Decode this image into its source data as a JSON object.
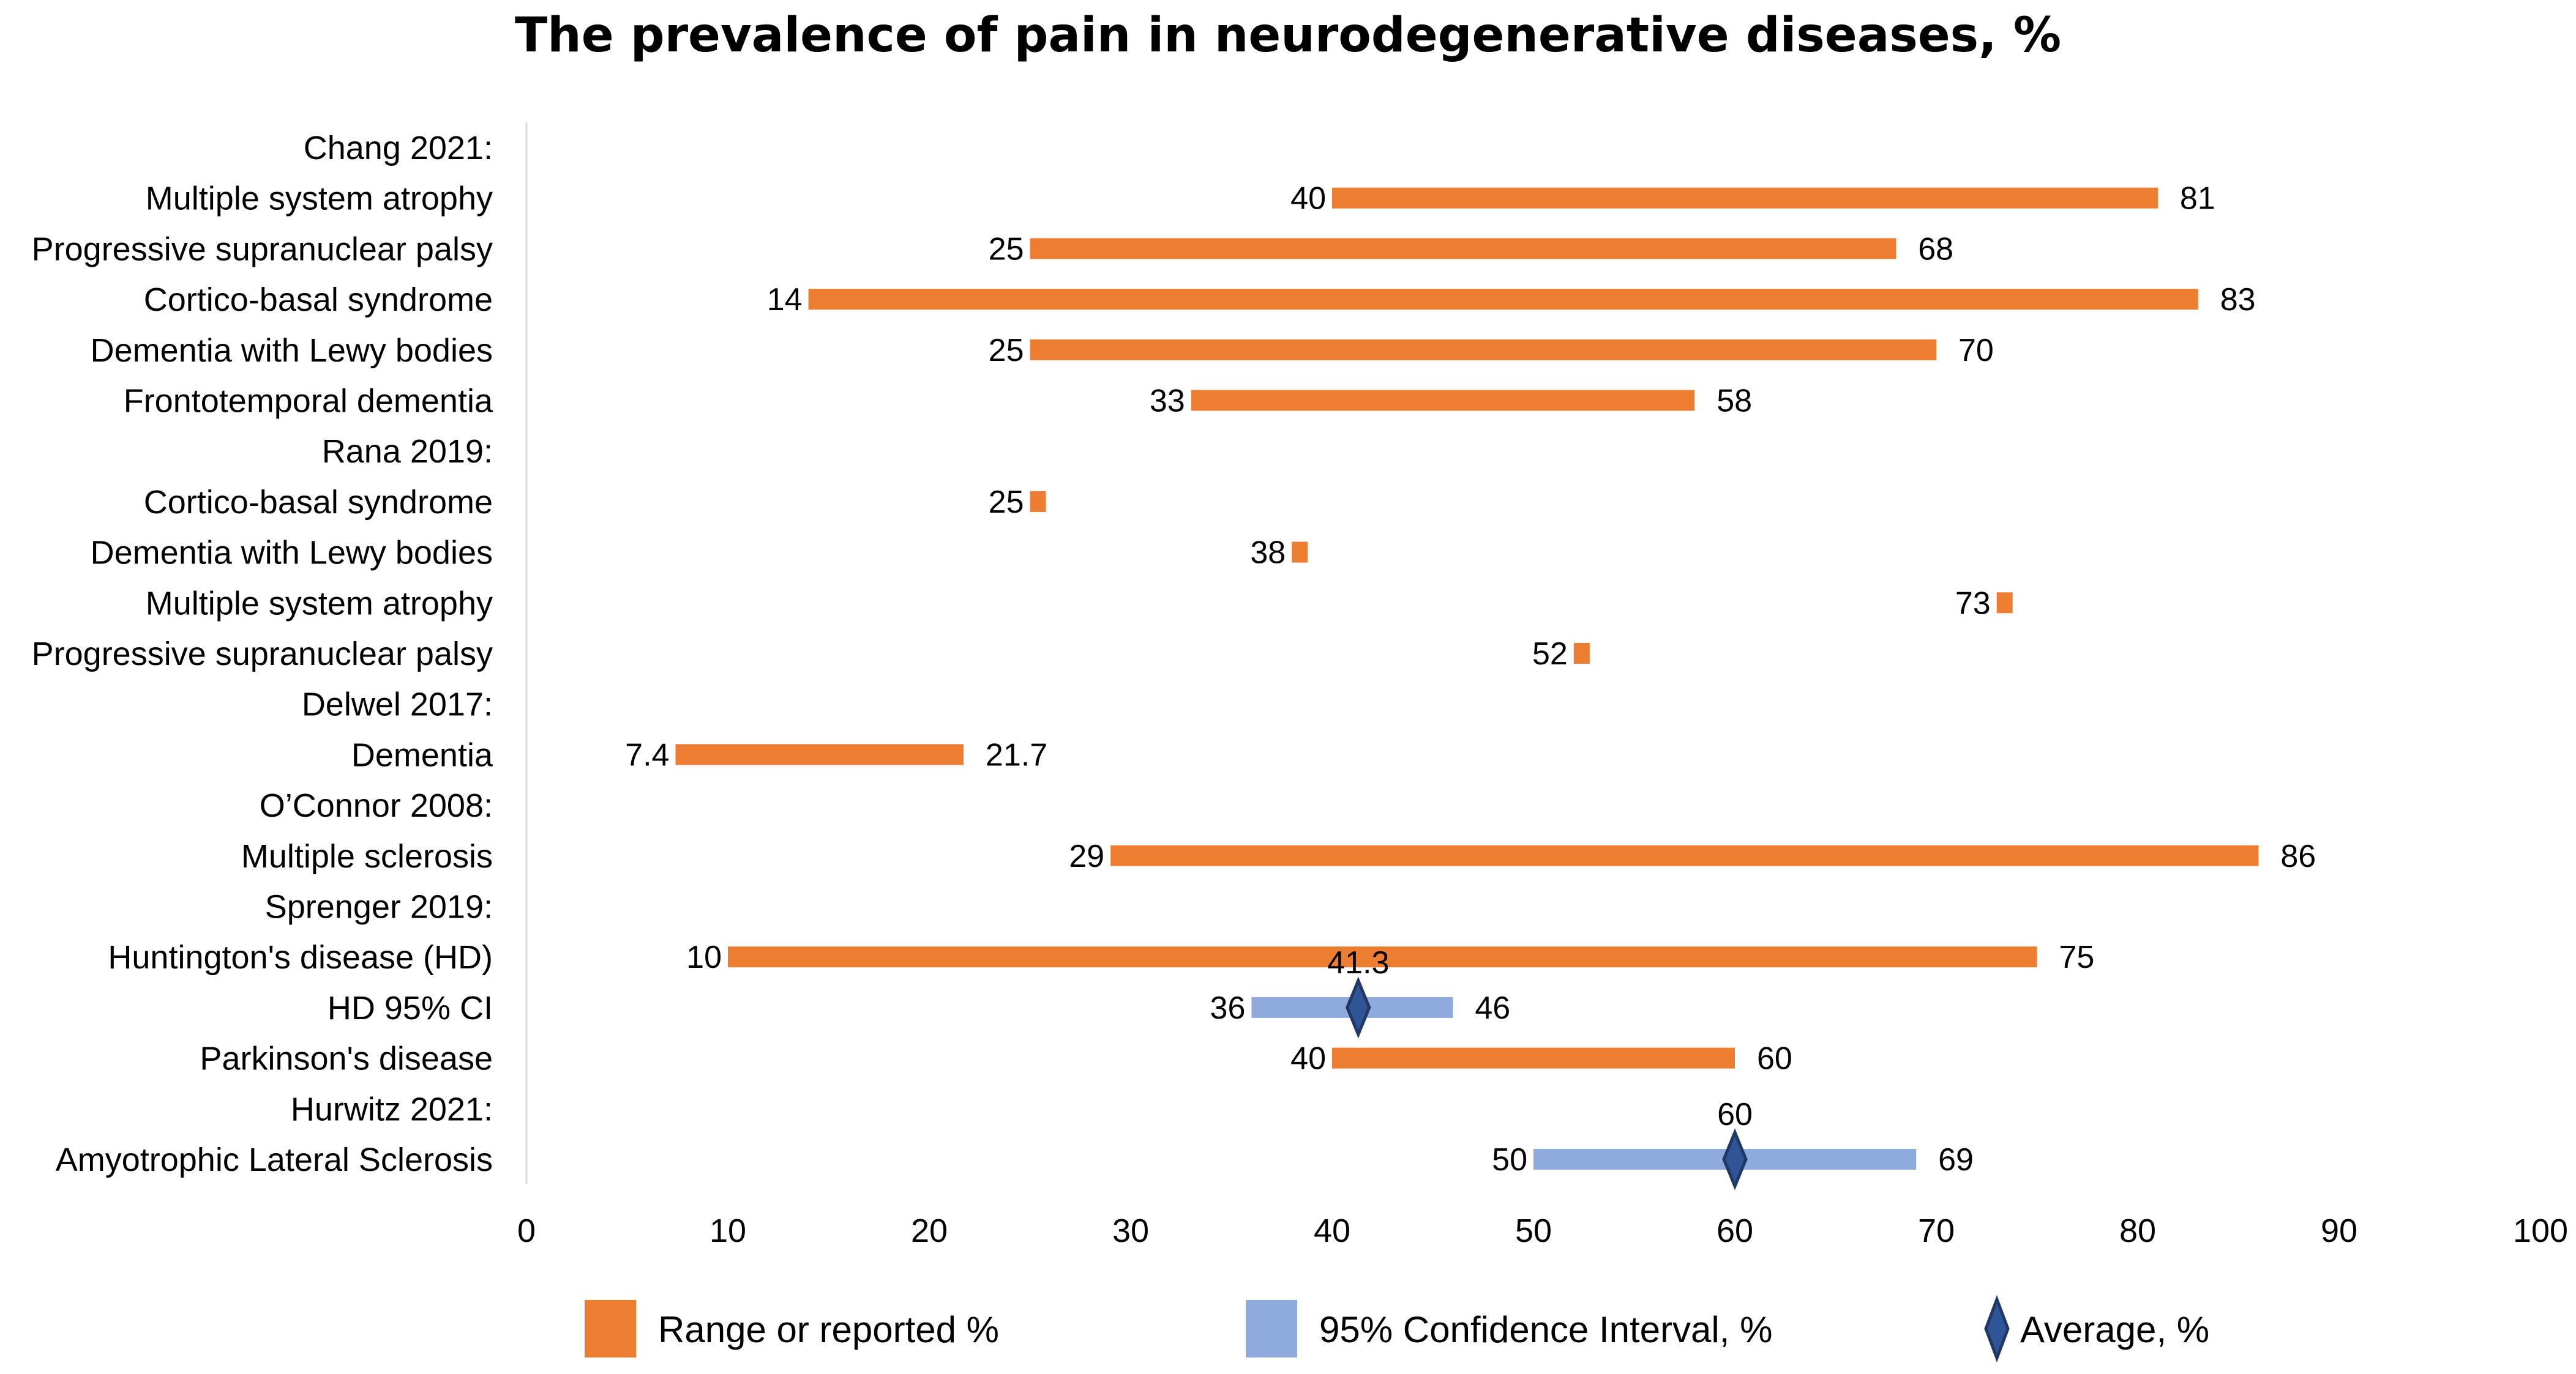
{
  "chart_data": {
    "type": "bar",
    "subtype": "floating-range",
    "title": "The prevalence of pain in neurodegenerative diseases, %",
    "xlabel": "",
    "ylabel": "",
    "xlim": [
      0,
      100
    ],
    "xticks": [
      "0",
      "10",
      "20",
      "30",
      "40",
      "50",
      "60",
      "70",
      "80",
      "90",
      "100"
    ],
    "grid": false,
    "colors": {
      "range": "#ED7D31",
      "ci": "#8FAADC",
      "average": "#2F5597",
      "average_border": "#1F3864",
      "axis": "#D9D9D9"
    },
    "legend": {
      "position": "bottom",
      "items": [
        {
          "kind": "range",
          "label": "Range or reported %"
        },
        {
          "kind": "ci",
          "label": "95% Confidence Interval, %"
        },
        {
          "kind": "average",
          "label": "Average, %"
        }
      ]
    },
    "rows": [
      {
        "label": "Chang 2021:",
        "kind": "header"
      },
      {
        "label": "Multiple system atrophy",
        "kind": "range",
        "low": 40,
        "high": 81,
        "low_label": "40",
        "high_label": "81"
      },
      {
        "label": "Progressive supranuclear palsy",
        "kind": "range",
        "low": 25,
        "high": 68,
        "low_label": "25",
        "high_label": "68"
      },
      {
        "label": "Cortico-basal syndrome",
        "kind": "range",
        "low": 14,
        "high": 83,
        "low_label": "14",
        "high_label": "83"
      },
      {
        "label": "Dementia with Lewy bodies",
        "kind": "range",
        "low": 25,
        "high": 70,
        "low_label": "25",
        "high_label": "70"
      },
      {
        "label": "Frontotemporal dementia",
        "kind": "range",
        "low": 33,
        "high": 58,
        "low_label": "33",
        "high_label": "58"
      },
      {
        "label": "Rana 2019:",
        "kind": "header"
      },
      {
        "label": "Cortico-basal syndrome",
        "kind": "point",
        "value": 25,
        "value_label": "25"
      },
      {
        "label": "Dementia with Lewy bodies",
        "kind": "point",
        "value": 38,
        "value_label": "38"
      },
      {
        "label": "Multiple system atrophy",
        "kind": "point",
        "value": 73,
        "value_label": "73"
      },
      {
        "label": "Progressive supranuclear palsy",
        "kind": "point",
        "value": 52,
        "value_label": "52"
      },
      {
        "label": "Delwel 2017:",
        "kind": "header"
      },
      {
        "label": "Dementia",
        "kind": "range",
        "low": 7.4,
        "high": 21.7,
        "low_label": "7.4",
        "high_label": "21.7"
      },
      {
        "label": "O’Connor 2008:",
        "kind": "header"
      },
      {
        "label": "Multiple sclerosis",
        "kind": "range",
        "low": 29,
        "high": 86,
        "low_label": "29",
        "high_label": "86"
      },
      {
        "label": "Sprenger 2019:",
        "kind": "header"
      },
      {
        "label": "Huntington's disease (HD)",
        "kind": "range",
        "low": 10,
        "high": 75,
        "low_label": "10",
        "high_label": "75"
      },
      {
        "label": "HD 95% CI",
        "kind": "ci",
        "low": 36,
        "high": 46,
        "low_label": "36",
        "high_label": "46",
        "avg": 41.3,
        "avg_label": "41.3"
      },
      {
        "label": "Parkinson's disease",
        "kind": "range",
        "low": 40,
        "high": 60,
        "low_label": "40",
        "high_label": "60"
      },
      {
        "label": "Hurwitz 2021:",
        "kind": "header"
      },
      {
        "label": "Amyotrophic Lateral Sclerosis",
        "kind": "ci",
        "low": 50,
        "high": 69,
        "low_label": "50",
        "high_label": "69",
        "avg": 60,
        "avg_label": "60"
      }
    ]
  }
}
